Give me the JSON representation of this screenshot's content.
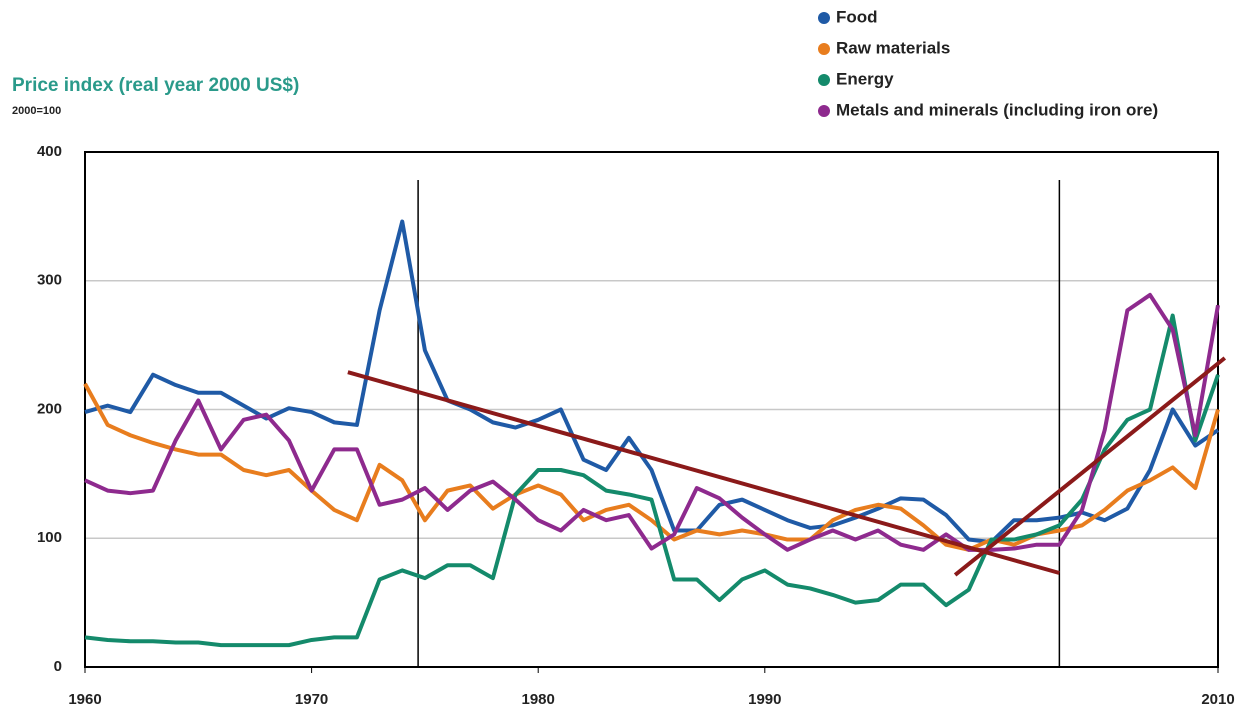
{
  "chart_data": {
    "type": "line",
    "y_axis_label": "Price index (real year 2000 US$)",
    "y_axis_note": "2000=100",
    "x": [
      1960,
      1961,
      1962,
      1963,
      1964,
      1965,
      1966,
      1967,
      1968,
      1969,
      1970,
      1971,
      1972,
      1973,
      1974,
      1975,
      1976,
      1977,
      1978,
      1979,
      1980,
      1981,
      1982,
      1983,
      1984,
      1985,
      1986,
      1987,
      1988,
      1989,
      1990,
      1991,
      1992,
      1993,
      1994,
      1995,
      1996,
      1997,
      1998,
      1999,
      2000,
      2001,
      2002,
      2003,
      2004,
      2005,
      2006,
      2007,
      2008,
      2009,
      2010
    ],
    "xlim": [
      1960,
      2010
    ],
    "xticks": [
      1960,
      1970,
      1980,
      1990,
      2010
    ],
    "ylim": [
      0,
      400
    ],
    "yticks": [
      0,
      100,
      200,
      300,
      400
    ],
    "grid": true,
    "legend": "top-right",
    "series": [
      {
        "name": "Food",
        "color": "#1f5aa6",
        "values": [
          198,
          203,
          198,
          227,
          219,
          213,
          213,
          203,
          193,
          201,
          198,
          190,
          188,
          277,
          346,
          246,
          207,
          200,
          190,
          186,
          192,
          200,
          161,
          153,
          178,
          153,
          106,
          106,
          126,
          130,
          122,
          114,
          108,
          110,
          116,
          123,
          131,
          130,
          118,
          99,
          97,
          114,
          114,
          116,
          120,
          114,
          123,
          153,
          200,
          172,
          184
        ]
      },
      {
        "name": "Raw materials",
        "color": "#e87d1e",
        "values": [
          220,
          188,
          180,
          174,
          169,
          165,
          165,
          153,
          149,
          153,
          137,
          122,
          114,
          157,
          145,
          114,
          137,
          141,
          123,
          134,
          141,
          134,
          114,
          122,
          126,
          114,
          99,
          106,
          103,
          106,
          103,
          99,
          99,
          114,
          122,
          126,
          123,
          110,
          95,
          91,
          99,
          95,
          103,
          106,
          110,
          122,
          137,
          145,
          155,
          139,
          200
        ]
      },
      {
        "name": "Energy",
        "color": "#148a6b",
        "values": [
          23,
          21,
          20,
          20,
          19,
          19,
          17,
          17,
          17,
          17,
          21,
          23,
          23,
          68,
          75,
          69,
          79,
          79,
          69,
          134,
          153,
          153,
          149,
          137,
          134,
          130,
          68,
          68,
          52,
          68,
          75,
          64,
          61,
          56,
          50,
          52,
          64,
          64,
          48,
          60,
          99,
          99,
          103,
          110,
          130,
          169,
          192,
          200,
          273,
          176,
          227
        ]
      },
      {
        "name": "Metals and minerals (including iron ore)",
        "color": "#8e2a8e",
        "values": [
          145,
          137,
          135,
          137,
          176,
          207,
          169,
          192,
          196,
          176,
          137,
          169,
          169,
          126,
          130,
          139,
          122,
          137,
          144,
          130,
          114,
          106,
          122,
          114,
          118,
          92,
          103,
          139,
          131,
          116,
          103,
          91,
          99,
          106,
          99,
          106,
          95,
          91,
          103,
          91,
          91,
          92,
          95,
          95,
          122,
          184,
          277,
          289,
          262,
          180,
          281
        ]
      }
    ],
    "reference_lines": [
      1974.7,
      2003
    ],
    "trend_lines": [
      {
        "x": [
          1971.6,
          2003
        ],
        "y": [
          229,
          73
        ]
      },
      {
        "x": [
          1998.4,
          2010.3
        ],
        "y": [
          71.5,
          240
        ]
      }
    ]
  }
}
